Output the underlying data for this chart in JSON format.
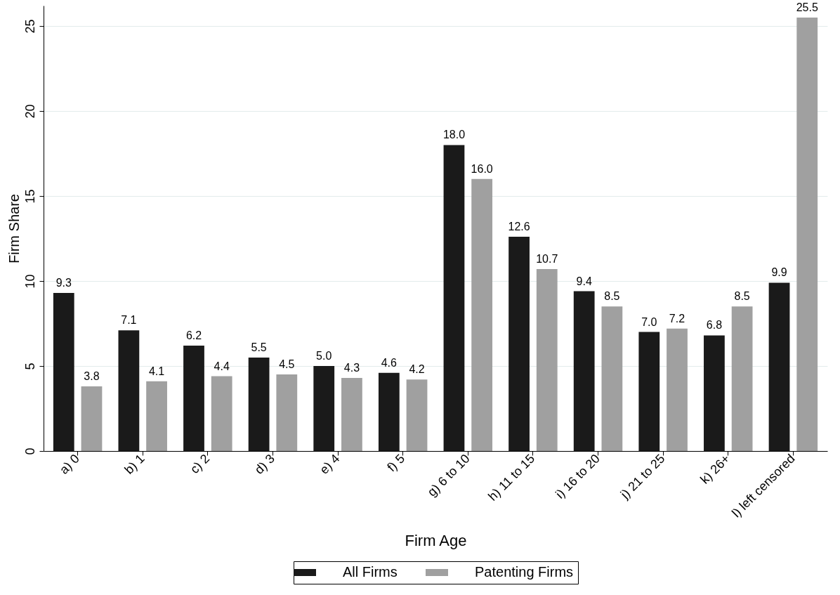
{
  "chart_data": {
    "type": "bar",
    "xlabel": "Firm Age",
    "ylabel": "Firm Share",
    "categories": [
      "a) 0",
      "b) 1",
      "c) 2",
      "d) 3",
      "e) 4",
      "f) 5",
      "g) 6 to 10",
      "h) 11 to 15",
      "i) 16 to 20",
      "j) 21 to 25",
      "k) 26+",
      "l) left censored"
    ],
    "series": [
      {
        "name": "All Firms",
        "color": "#1a1a1a",
        "values": [
          9.3,
          7.1,
          6.2,
          5.5,
          5.0,
          4.6,
          18.0,
          12.6,
          9.4,
          7.0,
          6.8,
          9.9
        ],
        "value_labels": [
          "9.3",
          "7.1",
          "6.2",
          "5.5",
          "5.0",
          "4.6",
          "18.0",
          "12.6",
          "9.4",
          "7.0",
          "6.8",
          "9.9"
        ]
      },
      {
        "name": "Patenting Firms",
        "color": "#a0a0a0",
        "values": [
          3.8,
          4.1,
          4.4,
          4.5,
          4.3,
          4.2,
          16.0,
          10.7,
          8.5,
          7.2,
          8.5,
          25.5
        ],
        "value_labels": [
          "3.8",
          "4.1",
          "4.4",
          "4.5",
          "4.3",
          "4.2",
          "16.0",
          "10.7",
          "8.5",
          "7.2",
          "8.5",
          "25.5"
        ]
      }
    ],
    "ylim": [
      0,
      26.2
    ],
    "yticks": [
      0,
      5,
      10,
      15,
      20,
      25
    ],
    "grid": "y",
    "legend": "bottom"
  }
}
